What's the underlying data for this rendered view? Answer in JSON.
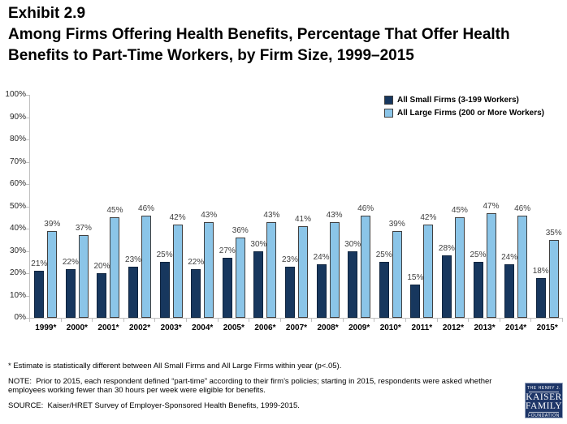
{
  "header": {
    "exhibit": "Exhibit 2.9",
    "title_lines": [
      "Among Firms Offering Health Benefits, Percentage That Offer Health",
      "Benefits to Part-Time Workers, by Firm Size, 1999–2015"
    ]
  },
  "chart_data": {
    "type": "bar",
    "title": "Among Firms Offering Health Benefits, Percentage That Offer Health Benefits to Part-Time Workers, by Firm Size, 1999–2015",
    "categories": [
      "1999*",
      "2000*",
      "2001*",
      "2002*",
      "2003*",
      "2004*",
      "2005*",
      "2006*",
      "2007*",
      "2008*",
      "2009*",
      "2010*",
      "2011*",
      "2012*",
      "2013*",
      "2014*",
      "2015*"
    ],
    "series": [
      {
        "name": "All Small Firms (3-199 Workers)",
        "color": "#17375e",
        "values": [
          21,
          22,
          20,
          23,
          25,
          22,
          27,
          30,
          23,
          24,
          30,
          25,
          15,
          28,
          25,
          24,
          18
        ]
      },
      {
        "name": "All Large Firms (200 or More Workers)",
        "color": "#8bc5e8",
        "values": [
          39,
          37,
          45,
          46,
          42,
          43,
          36,
          43,
          41,
          43,
          46,
          39,
          42,
          45,
          47,
          46,
          35
        ]
      }
    ],
    "xlabel": "",
    "ylabel": "",
    "ylim": [
      0,
      100
    ],
    "ytick_step": 10,
    "ytick_labels": [
      "0%",
      "10%",
      "20%",
      "30%",
      "40%",
      "50%",
      "60%",
      "70%",
      "80%",
      "90%",
      "100%"
    ],
    "value_label_suffix": "%",
    "grid": false,
    "legend_position": "top-right"
  },
  "footnotes": {
    "star_note": "* Estimate is statistically different between All Small Firms and All Large Firms within year (p<.05).",
    "note": "NOTE:  Prior to 2015, each respondent defined “part-time” according to their firm’s policies; starting in 2015, respondents were asked whether employees working fewer than 30 hours per week were eligible for benefits.",
    "source": "SOURCE:  Kaiser/HRET Survey of Employer-Sponsored Health Benefits, 1999-2015."
  },
  "logo": {
    "line1": "THE HENRY J.",
    "line2": "KAISER",
    "line3": "FAMILY",
    "line4": "FOUNDATION",
    "color": "#1e3668"
  }
}
